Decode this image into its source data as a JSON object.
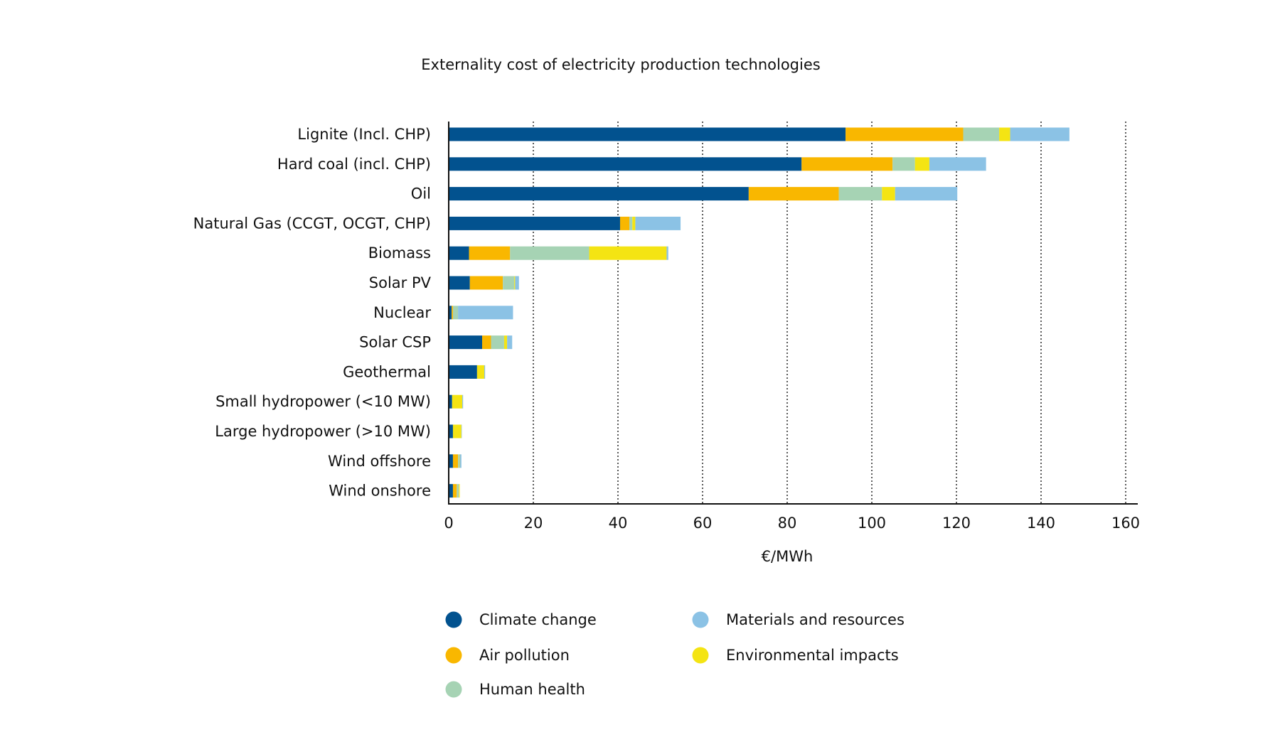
{
  "chart_data": {
    "type": "bar",
    "orientation": "horizontal",
    "stacked": true,
    "title": "Externality cost of electricity production technologies",
    "xlabel": "€/MWh",
    "ylabel": "",
    "xlim": [
      0,
      160
    ],
    "xticks": [
      0,
      20,
      40,
      60,
      80,
      100,
      120,
      140,
      160
    ],
    "grid": "vertical dotted",
    "legend_position": "bottom",
    "categories": [
      "Lignite (Incl. CHP)",
      "Hard coal (incl. CHP)",
      "Oil",
      "Natural Gas (CCGT, OCGT, CHP)",
      "Biomass",
      "Solar PV",
      "Nuclear",
      "Solar CSP",
      "Geothermal",
      "Small hydropower (<10 MW)",
      "Large hydropower (>10 MW)",
      "Wind offshore",
      "Wind onshore"
    ],
    "series": [
      {
        "name": "Climate change",
        "color": "#02528F",
        "values": [
          93.8,
          83.4,
          70.9,
          40.5,
          4.8,
          5.0,
          0.7,
          7.9,
          6.7,
          0.8,
          1.0,
          1.0,
          1.0
        ]
      },
      {
        "name": "Air pollution",
        "color": "#F9B700",
        "values": [
          27.8,
          21.5,
          21.3,
          2.2,
          9.7,
          7.8,
          0.3,
          2.1,
          0.0,
          0.0,
          0.0,
          1.2,
          0.9
        ]
      },
      {
        "name": "Human health",
        "color": "#A6D3B4",
        "values": [
          8.5,
          5.3,
          10.2,
          0.7,
          18.7,
          2.7,
          1.2,
          3.1,
          0.0,
          0.0,
          0.0,
          0.3,
          0.5
        ]
      },
      {
        "name": "Environmental impacts",
        "color": "#F4E413",
        "values": [
          2.6,
          3.4,
          3.1,
          0.7,
          18.3,
          0.2,
          0.0,
          0.7,
          1.7,
          2.4,
          2.0,
          0.1,
          0.2
        ]
      },
      {
        "name": "Materials and resources",
        "color": "#8BC2E5",
        "values": [
          14.0,
          13.4,
          14.7,
          10.7,
          0.4,
          0.9,
          13.0,
          1.2,
          0.2,
          0.2,
          0.1,
          0.4,
          0.0
        ]
      }
    ],
    "legend": {
      "columns": [
        [
          "Climate change",
          "Air pollution",
          "Human health"
        ],
        [
          "Materials and resources",
          "Environmental impacts"
        ]
      ]
    }
  }
}
